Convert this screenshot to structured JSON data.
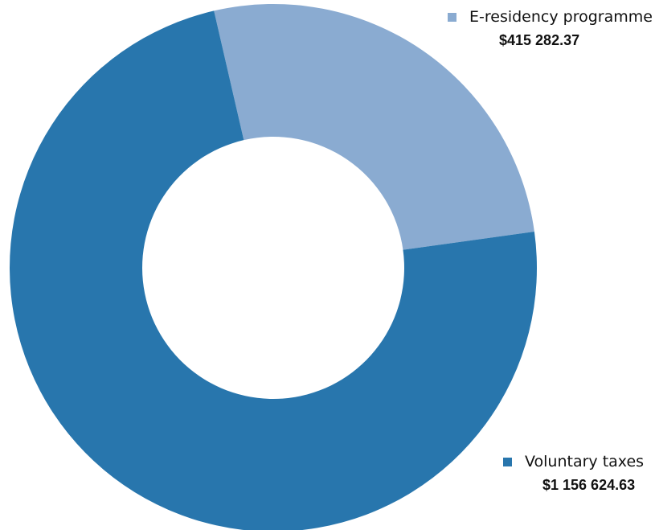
{
  "chart_data": {
    "type": "pie",
    "subtype": "donut",
    "slices": [
      {
        "label": "E-residency programme",
        "value": 415282.37,
        "value_label": "$415 282.37",
        "color": "#8aabd1"
      },
      {
        "label": "Voluntary taxes",
        "value": 1156624.63,
        "value_label": "$1 156 624.63",
        "color": "#2876ad"
      }
    ],
    "legend_position": "right"
  }
}
